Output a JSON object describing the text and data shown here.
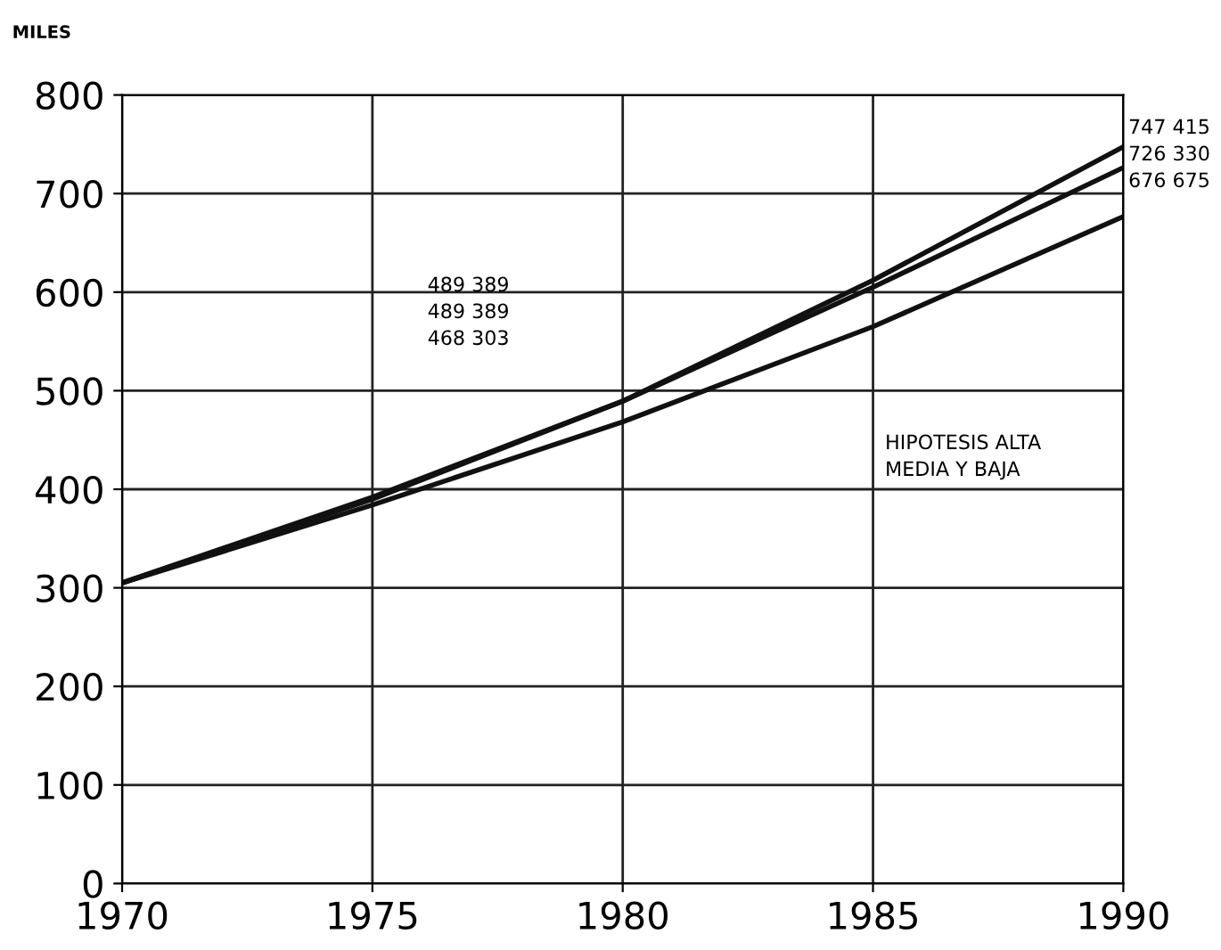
{
  "chart_data": {
    "type": "line",
    "ylabel": "MILES",
    "x": [
      1970,
      1975,
      1980,
      1985,
      1990
    ],
    "series": [
      {
        "color": "#111111",
        "values": [
          305,
          392,
          489.389,
          612,
          747.415
        ]
      },
      {
        "color": "#111111",
        "values": [
          305,
          390,
          489.389,
          605,
          726.33
        ]
      },
      {
        "color": "#111111",
        "values": [
          305,
          384,
          468.303,
          565,
          676.675
        ]
      }
    ],
    "xlim": [
      1970,
      1990
    ],
    "ylim": [
      0,
      800
    ],
    "xticks": [
      1970,
      1975,
      1980,
      1985,
      1990
    ],
    "yticks": [
      0,
      100,
      200,
      300,
      400,
      500,
      600,
      700,
      800
    ],
    "grid": true,
    "marker": "none",
    "line_style": "solid",
    "annotations": [
      "489 389\n489 389\n468 303",
      "747 415\n726 330\n676 675",
      "HIPOTESIS ALTA\nMEDIA Y BAJA"
    ]
  }
}
